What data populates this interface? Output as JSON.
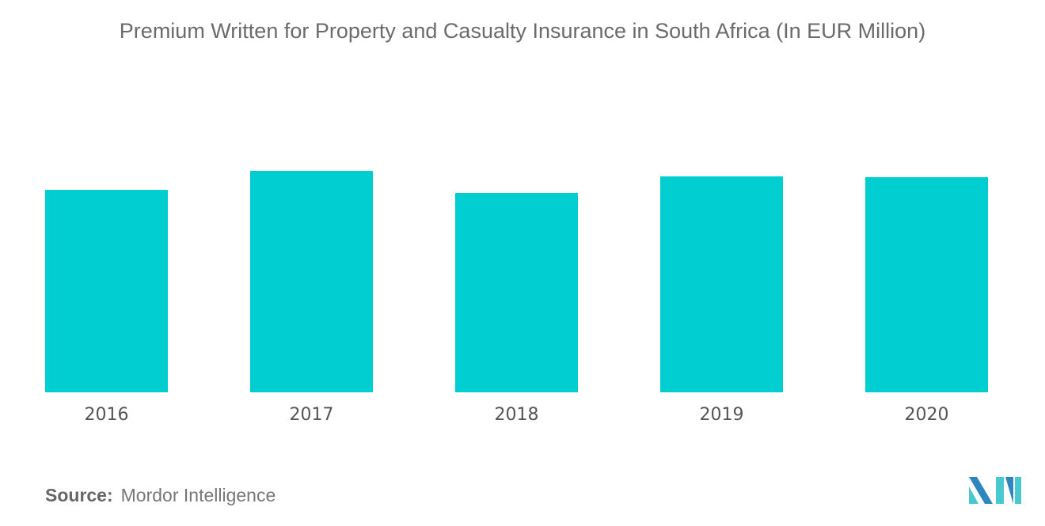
{
  "chart_data": {
    "type": "bar",
    "title": "Premium Written for Property and Casualty Insurance in South Africa (In EUR Million)",
    "categories": [
      "2016",
      "2017",
      "2018",
      "2019",
      "2020"
    ],
    "values": [
      256,
      280,
      252,
      273,
      272
    ],
    "ylim": [
      0,
      280
    ],
    "xlabel": "",
    "ylabel": "",
    "grid": false,
    "y_axis_shown": false,
    "bar_color": "#00CED1"
  },
  "source": {
    "label": "Source:",
    "text": "Mordor Intelligence"
  },
  "logo": {
    "colors": [
      "#2E86C1",
      "#48C9D0"
    ]
  }
}
